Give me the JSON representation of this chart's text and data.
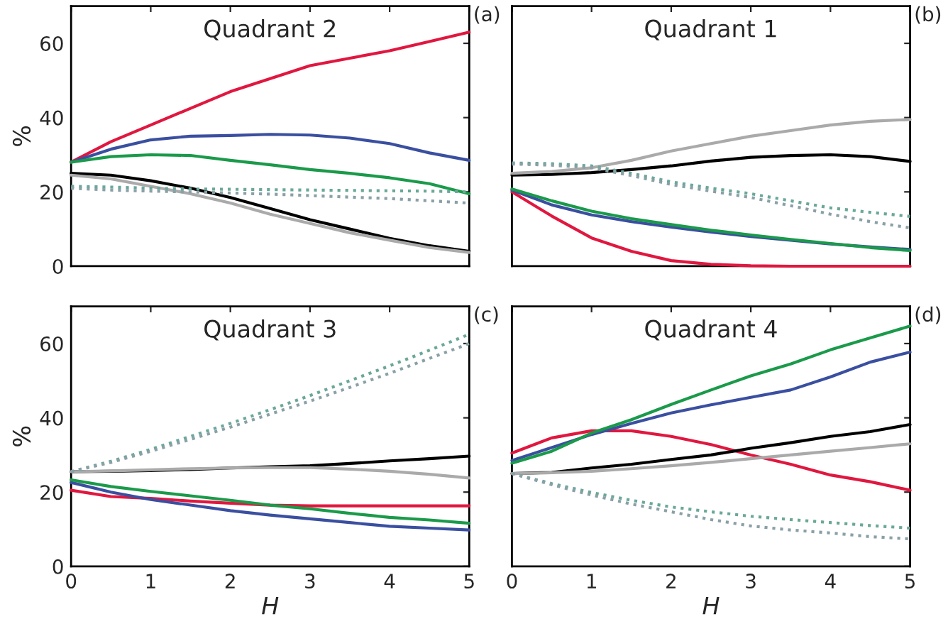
{
  "chart_data": [
    {
      "type": "line",
      "title": "Quadrant 2",
      "ylabel": "%",
      "annotations": [
        "(a)"
      ],
      "tick_labels": "y",
      "xlim": [
        0,
        5
      ],
      "ylim": [
        0,
        70
      ],
      "xticks": [
        0,
        1,
        2,
        3,
        4,
        5
      ],
      "yticks": [
        0,
        20,
        40,
        60
      ],
      "grid": false,
      "legend": false,
      "x": [
        0,
        0.5,
        1,
        1.5,
        2,
        2.5,
        3,
        3.5,
        4,
        4.5,
        5
      ],
      "series": [
        {
          "color": "#e0173f",
          "line_style": "solid",
          "values": [
            28,
            33.5,
            38,
            42.5,
            47,
            50.5,
            54,
            56,
            58,
            60.5,
            63
          ]
        },
        {
          "color": "#3a4fa0",
          "line_style": "solid",
          "values": [
            28,
            31.5,
            34,
            35,
            35.2,
            35.5,
            35.3,
            34.5,
            33,
            30.5,
            28.5
          ]
        },
        {
          "color": "#1a9a4a",
          "line_style": "solid",
          "values": [
            28,
            29.5,
            30,
            29.8,
            28.5,
            27.3,
            26,
            25,
            23.8,
            22.2,
            19.5
          ]
        },
        {
          "color": "#000000",
          "line_style": "solid",
          "values": [
            25,
            24.5,
            23,
            21,
            18.5,
            15.5,
            12.5,
            10,
            7.5,
            5.5,
            4
          ]
        },
        {
          "color": "#aaaaaa",
          "line_style": "solid",
          "values": [
            24.5,
            23.5,
            21.5,
            19.5,
            17,
            14,
            11.5,
            9,
            7,
            5,
            3.7
          ]
        },
        {
          "color": "#6aa898",
          "line_style": "dotted",
          "values": [
            21.5,
            21.3,
            21,
            20.8,
            20.7,
            20.6,
            20.5,
            20.4,
            20.3,
            20.2,
            20
          ]
        },
        {
          "color": "#8aa0a8",
          "line_style": "dotted",
          "values": [
            21,
            20.5,
            20.2,
            20,
            19.7,
            19.4,
            19,
            18.6,
            18.2,
            17.6,
            17
          ]
        }
      ]
    },
    {
      "type": "line",
      "title": "Quadrant 1",
      "annotations": [
        "(b)"
      ],
      "tick_labels": false,
      "xlim": [
        0,
        5
      ],
      "ylim": [
        0,
        70
      ],
      "xticks": [
        0,
        1,
        2,
        3,
        4,
        5
      ],
      "yticks": [
        0,
        20,
        40,
        60
      ],
      "grid": false,
      "legend": false,
      "x": [
        0,
        0.5,
        1,
        1.5,
        2,
        2.5,
        3,
        3.5,
        4,
        4.5,
        5
      ],
      "series": [
        {
          "color": "#e0173f",
          "line_style": "solid",
          "values": [
            20,
            13.5,
            7.6,
            4,
            1.5,
            0.5,
            0.1,
            0,
            0,
            0,
            0
          ]
        },
        {
          "color": "#3a4fa0",
          "line_style": "solid",
          "values": [
            20.5,
            16.5,
            13.8,
            12,
            10.5,
            9.2,
            8,
            7,
            6,
            5.2,
            4.5
          ]
        },
        {
          "color": "#1a9a4a",
          "line_style": "solid",
          "values": [
            20.8,
            17.6,
            14.8,
            12.8,
            11.2,
            9.7,
            8.4,
            7.2,
            6.1,
            5,
            4.2
          ]
        },
        {
          "color": "#000000",
          "line_style": "solid",
          "values": [
            24.5,
            24.7,
            25.2,
            26,
            27,
            28.3,
            29.3,
            29.8,
            30,
            29.5,
            28.2
          ]
        },
        {
          "color": "#aaaaaa",
          "line_style": "solid",
          "values": [
            25,
            25.5,
            26.5,
            28.5,
            31,
            33,
            35,
            36.5,
            38,
            39,
            39.5
          ]
        },
        {
          "color": "#6aa898",
          "line_style": "dotted",
          "values": [
            27.8,
            27.6,
            27,
            25,
            22.7,
            21,
            19.5,
            17.6,
            15.7,
            14.5,
            13.4
          ]
        },
        {
          "color": "#8aa0a8",
          "line_style": "dotted",
          "values": [
            27.5,
            27.2,
            26.5,
            24.4,
            22,
            20.2,
            18.5,
            16.3,
            14,
            12,
            10.3
          ]
        }
      ]
    },
    {
      "type": "line",
      "title": "Quadrant 3",
      "xlabel": "H",
      "ylabel": "%",
      "annotations": [
        "(c)"
      ],
      "xlim": [
        0,
        5
      ],
      "ylim": [
        0,
        70
      ],
      "xticks": [
        0,
        1,
        2,
        3,
        4,
        5
      ],
      "yticks": [
        0,
        20,
        40,
        60
      ],
      "grid": false,
      "legend": false,
      "x": [
        0,
        0.5,
        1,
        1.5,
        2,
        2.5,
        3,
        3.5,
        4,
        4.5,
        5
      ],
      "series": [
        {
          "color": "#e0173f",
          "line_style": "solid",
          "values": [
            20.5,
            18.8,
            18.3,
            17.6,
            17,
            16.5,
            16.3,
            16.3,
            16.3,
            16.3,
            16.3
          ]
        },
        {
          "color": "#3a4fa0",
          "line_style": "solid",
          "values": [
            22.6,
            20,
            18,
            16.5,
            15,
            13.8,
            12.8,
            11.8,
            10.8,
            10.3,
            9.8
          ]
        },
        {
          "color": "#1a9a4a",
          "line_style": "solid",
          "values": [
            23.3,
            21.5,
            20.2,
            19,
            17.8,
            16.5,
            15.5,
            14.3,
            13.2,
            12.5,
            11.6
          ]
        },
        {
          "color": "#000000",
          "line_style": "solid",
          "values": [
            25.5,
            25.6,
            25.8,
            26.1,
            26.5,
            26.8,
            27.1,
            27.7,
            28.4,
            29,
            29.7
          ]
        },
        {
          "color": "#aaaaaa",
          "line_style": "solid",
          "values": [
            25.5,
            25.7,
            26,
            26.3,
            26.5,
            26.6,
            26.6,
            26.2,
            25.6,
            24.8,
            23.8
          ]
        },
        {
          "color": "#6aa898",
          "line_style": "dotted",
          "values": [
            25.5,
            28.3,
            31.5,
            35,
            38.5,
            42.2,
            46,
            50,
            54,
            58.2,
            62.5
          ]
        },
        {
          "color": "#8aa0a8",
          "line_style": "dotted",
          "values": [
            25.5,
            28,
            31,
            34.2,
            37.5,
            41,
            44.5,
            48.2,
            52,
            56,
            60
          ]
        }
      ]
    },
    {
      "type": "line",
      "title": "Quadrant 4",
      "xlabel": "H",
      "annotations": [
        "(d)"
      ],
      "tick_labels": "x",
      "xlim": [
        0,
        5
      ],
      "ylim": [
        0,
        70
      ],
      "xticks": [
        0,
        1,
        2,
        3,
        4,
        5
      ],
      "yticks": [
        0,
        20,
        40,
        60
      ],
      "grid": false,
      "legend": false,
      "x": [
        0,
        0.5,
        1,
        1.5,
        2,
        2.5,
        3,
        3.5,
        4,
        4.5,
        5
      ],
      "series": [
        {
          "color": "#e0173f",
          "line_style": "solid",
          "values": [
            30.5,
            34.6,
            36.5,
            36.5,
            35,
            32.8,
            30,
            27.5,
            24.6,
            22.8,
            20.5
          ]
        },
        {
          "color": "#3a4fa0",
          "line_style": "solid",
          "values": [
            28.5,
            32,
            35.5,
            38.5,
            41.3,
            43.5,
            45.5,
            47.5,
            51,
            55,
            57.7
          ]
        },
        {
          "color": "#1a9a4a",
          "line_style": "solid",
          "values": [
            27.8,
            31,
            35.9,
            39.5,
            43.6,
            47.5,
            51.3,
            54.5,
            58.3,
            61.5,
            64.7
          ]
        },
        {
          "color": "#000000",
          "line_style": "solid",
          "values": [
            25,
            25.3,
            26.5,
            27.5,
            28.8,
            30,
            31.8,
            33.3,
            35,
            36.3,
            38.2
          ]
        },
        {
          "color": "#aaaaaa",
          "line_style": "solid",
          "values": [
            25,
            25.2,
            25.6,
            26.3,
            27.1,
            28,
            29,
            30,
            31,
            32,
            33
          ]
        },
        {
          "color": "#6aa898",
          "line_style": "dotted",
          "values": [
            25,
            22.3,
            19.9,
            17.8,
            16,
            14.7,
            13.5,
            12.6,
            11.8,
            11,
            10.3
          ]
        },
        {
          "color": "#8aa0a8",
          "line_style": "dotted",
          "values": [
            25,
            22,
            19.2,
            16.8,
            14.7,
            12.6,
            10.9,
            9.8,
            9,
            8,
            7.4
          ]
        }
      ]
    }
  ]
}
